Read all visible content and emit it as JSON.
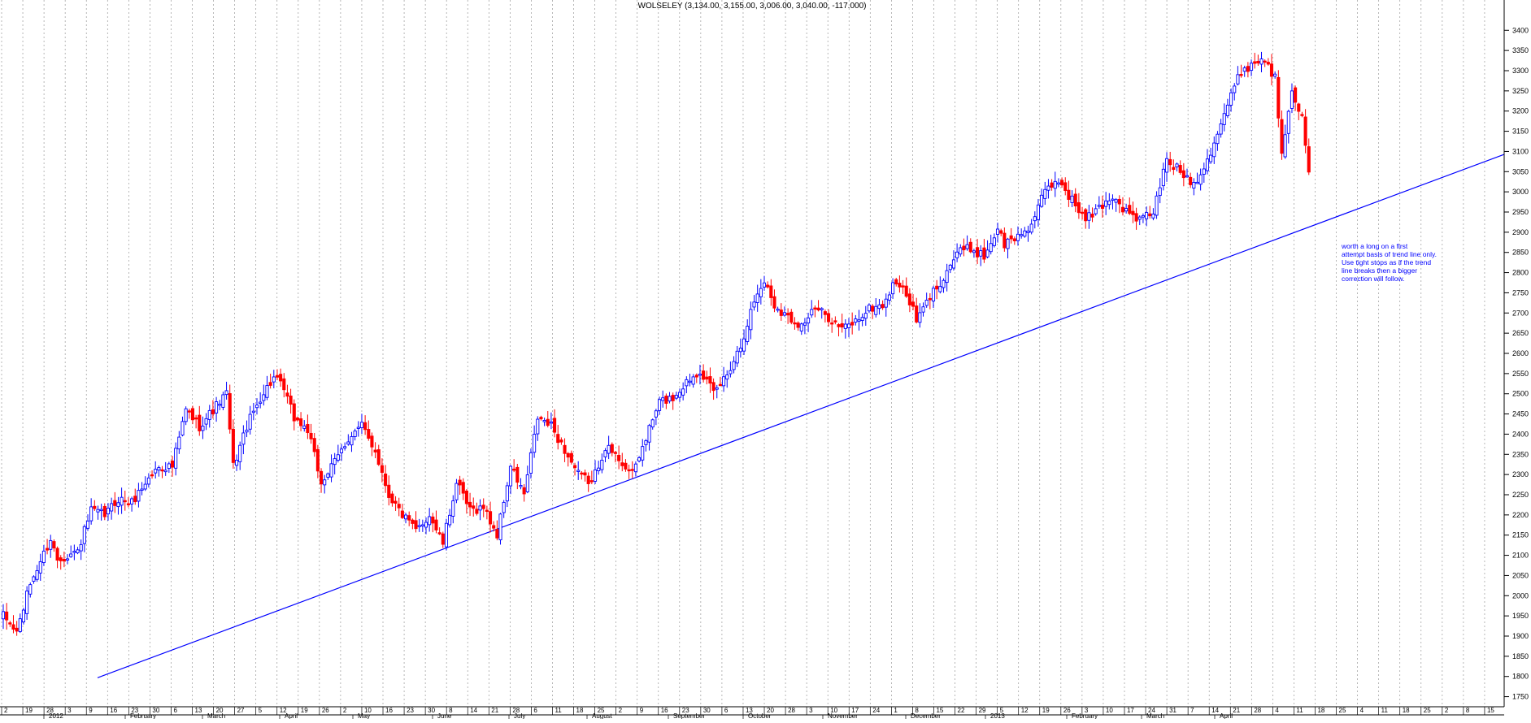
{
  "chart_data": {
    "type": "candlestick",
    "title": "WOLSELEY (3,134.00, 3,155.00, 3,006.00, 3,040.00, -117.000)",
    "annotation": [
      "worth a long on a first",
      "attempt basis of trend line only.",
      "Use tight stops as if the trend",
      "line breaks then a bigger",
      "correction will follow."
    ],
    "ylim": [
      1725,
      3475
    ],
    "y_ticks": [
      1750,
      1800,
      1850,
      1900,
      1950,
      2000,
      2050,
      2100,
      2150,
      2200,
      2250,
      2300,
      2350,
      2400,
      2450,
      2500,
      2550,
      2600,
      2650,
      2700,
      2750,
      2800,
      2850,
      2900,
      2950,
      3000,
      3050,
      3100,
      3150,
      3200,
      3250,
      3300,
      3350,
      3400
    ],
    "x_day_labels": [
      "2",
      "19",
      "28",
      "3",
      "9",
      "16",
      "23",
      "30",
      "6",
      "13",
      "20",
      "27",
      "5",
      "12",
      "19",
      "26",
      "2",
      "10",
      "16",
      "23",
      "30",
      "8",
      "14",
      "21",
      "28",
      "6",
      "11",
      "18",
      "25",
      "2",
      "9",
      "16",
      "23",
      "30",
      "6",
      "13",
      "20",
      "28",
      "3",
      "10",
      "17",
      "24",
      "1",
      "8",
      "15",
      "22",
      "29",
      "5",
      "12",
      "19",
      "26",
      "3",
      "10",
      "17",
      "24",
      "31",
      "7",
      "14",
      "21",
      "28",
      "4",
      "11",
      "18",
      "25",
      "4",
      "11",
      "18",
      "25",
      "2",
      "8",
      "15"
    ],
    "x_month_labels": [
      "2012",
      "February",
      "March",
      "April",
      "May",
      "June",
      "July",
      "August",
      "September",
      "October",
      "November",
      "December",
      "2013",
      "February",
      "March",
      "April"
    ],
    "trend_line": {
      "start": [
        0,
        1710
      ],
      "end": [
        406,
        2975
      ]
    },
    "colors": {
      "up": "#0000ff",
      "down": "#ff0000",
      "trend": "#0000ff",
      "annotation": "#0000ff",
      "grid": "#999999"
    },
    "anchors": [
      [
        0,
        1950
      ],
      [
        4,
        1910
      ],
      [
        8,
        2030
      ],
      [
        14,
        2140
      ],
      [
        16,
        2090
      ],
      [
        22,
        2110
      ],
      [
        26,
        2210
      ],
      [
        30,
        2200
      ],
      [
        34,
        2240
      ],
      [
        38,
        2230
      ],
      [
        42,
        2280
      ],
      [
        46,
        2320
      ],
      [
        50,
        2320
      ],
      [
        54,
        2460
      ],
      [
        58,
        2420
      ],
      [
        62,
        2460
      ],
      [
        66,
        2500
      ],
      [
        68,
        2320
      ],
      [
        72,
        2420
      ],
      [
        76,
        2490
      ],
      [
        80,
        2540
      ],
      [
        83,
        2510
      ],
      [
        86,
        2440
      ],
      [
        90,
        2410
      ],
      [
        94,
        2280
      ],
      [
        98,
        2330
      ],
      [
        102,
        2390
      ],
      [
        106,
        2420
      ],
      [
        110,
        2360
      ],
      [
        114,
        2250
      ],
      [
        118,
        2200
      ],
      [
        122,
        2160
      ],
      [
        126,
        2200
      ],
      [
        130,
        2130
      ],
      [
        134,
        2280
      ],
      [
        138,
        2210
      ],
      [
        142,
        2220
      ],
      [
        146,
        2150
      ],
      [
        150,
        2320
      ],
      [
        154,
        2250
      ],
      [
        158,
        2440
      ],
      [
        162,
        2420
      ],
      [
        166,
        2360
      ],
      [
        170,
        2300
      ],
      [
        174,
        2280
      ],
      [
        178,
        2370
      ],
      [
        182,
        2340
      ],
      [
        186,
        2300
      ],
      [
        190,
        2390
      ],
      [
        194,
        2480
      ],
      [
        198,
        2490
      ],
      [
        202,
        2530
      ],
      [
        206,
        2560
      ],
      [
        210,
        2500
      ],
      [
        214,
        2550
      ],
      [
        218,
        2620
      ],
      [
        222,
        2730
      ],
      [
        225,
        2780
      ],
      [
        228,
        2720
      ],
      [
        232,
        2690
      ],
      [
        236,
        2670
      ],
      [
        240,
        2710
      ],
      [
        244,
        2690
      ],
      [
        248,
        2660
      ],
      [
        252,
        2680
      ],
      [
        256,
        2710
      ],
      [
        260,
        2720
      ],
      [
        264,
        2780
      ],
      [
        268,
        2730
      ],
      [
        270,
        2680
      ],
      [
        274,
        2740
      ],
      [
        278,
        2790
      ],
      [
        282,
        2850
      ],
      [
        286,
        2860
      ],
      [
        290,
        2840
      ],
      [
        294,
        2910
      ],
      [
        296,
        2870
      ],
      [
        300,
        2890
      ],
      [
        304,
        2920
      ],
      [
        308,
        3000
      ],
      [
        312,
        3030
      ],
      [
        316,
        2980
      ],
      [
        320,
        2930
      ],
      [
        324,
        2960
      ],
      [
        328,
        2990
      ],
      [
        332,
        2950
      ],
      [
        336,
        2930
      ],
      [
        340,
        2950
      ],
      [
        344,
        3080
      ],
      [
        348,
        3050
      ],
      [
        352,
        3020
      ],
      [
        356,
        3080
      ],
      [
        360,
        3170
      ],
      [
        364,
        3260
      ],
      [
        366,
        3300
      ],
      [
        370,
        3320
      ],
      [
        373,
        3330
      ],
      [
        376,
        3280
      ],
      [
        378,
        3100
      ],
      [
        381,
        3260
      ],
      [
        384,
        3180
      ],
      [
        386,
        3040
      ]
    ]
  }
}
